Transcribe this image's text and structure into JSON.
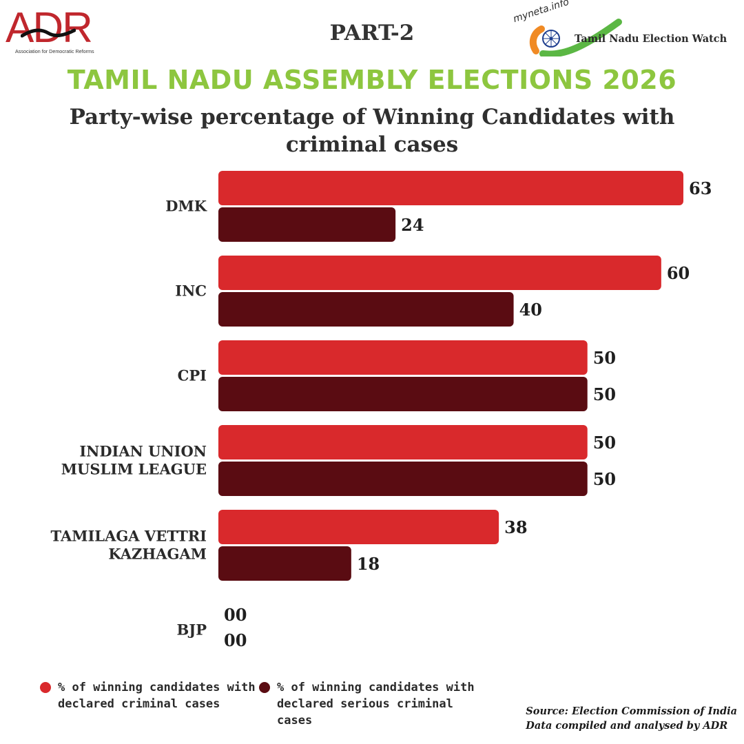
{
  "header": {
    "adr_logo_text": "ADR",
    "adr_logo_tagline": "Association for Democratic Reforms",
    "part_label": "PART-2",
    "myneta_logo_text": "myneta.info",
    "myneta_logo_tagline": "Tamil Nadu Election Watch",
    "main_title": "TAMIL NADU ASSEMBLY ELECTIONS 2026",
    "subtitle": "Party-wise percentage of  Winning Candidates with criminal cases"
  },
  "chart_data": {
    "type": "bar",
    "orientation": "horizontal",
    "categories": [
      [
        "DMK"
      ],
      [
        "INC"
      ],
      [
        "CPI"
      ],
      [
        "INDIAN UNION",
        "MUSLIM LEAGUE"
      ],
      [
        "TAMILAGA VETTRI",
        "KAZHAGAM"
      ],
      [
        "BJP"
      ]
    ],
    "series": [
      {
        "name": "% of winning candidates with declared criminal cases",
        "values": [
          63,
          60,
          50,
          50,
          38,
          0
        ],
        "labels": [
          "63",
          "60",
          "50",
          "50",
          "38",
          "00"
        ],
        "color": "#d9292c"
      },
      {
        "name": "% of winning candidates with declared serious criminal cases",
        "values": [
          24,
          40,
          50,
          50,
          18,
          0
        ],
        "labels": [
          "24",
          "40",
          "50",
          "50",
          "18",
          "00"
        ],
        "color": "#5a0c12"
      }
    ],
    "xlim": [
      0,
      63
    ],
    "grid": false,
    "legend_position": "bottom-left"
  },
  "legend": [
    {
      "text": "% of winning candidates with declared criminal cases",
      "color": "#d9292c"
    },
    {
      "text": "% of winning candidates with declared serious criminal cases",
      "color": "#5a0c12"
    }
  ],
  "source": {
    "line1": "Source: Election Commission of India",
    "line2": "Data compiled and analysed by ADR"
  }
}
